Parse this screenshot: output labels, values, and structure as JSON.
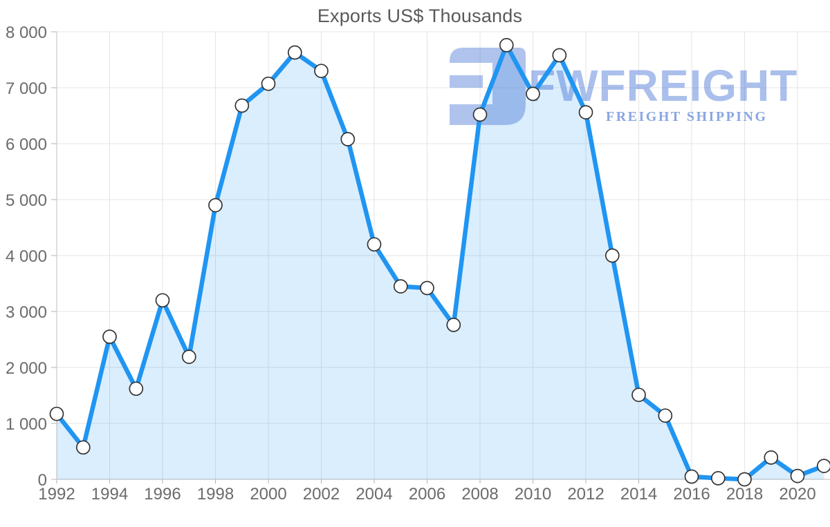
{
  "chart_data": {
    "type": "area",
    "title": "Exports US$ Thousands",
    "xlabel": "",
    "ylabel": "",
    "x": [
      1992,
      1993,
      1994,
      1995,
      1996,
      1997,
      1998,
      1999,
      2000,
      2001,
      2002,
      2003,
      2004,
      2005,
      2006,
      2007,
      2008,
      2009,
      2010,
      2011,
      2012,
      2013,
      2014,
      2015,
      2016,
      2017,
      2018,
      2019,
      2020,
      2021
    ],
    "values": [
      1170,
      570,
      2550,
      1620,
      3200,
      2190,
      4900,
      6680,
      7070,
      7630,
      7300,
      6080,
      4200,
      3450,
      3420,
      2760,
      6520,
      7760,
      6890,
      7580,
      6560,
      4000,
      1510,
      1140,
      50,
      20,
      0,
      390,
      60,
      240
    ],
    "ylim": [
      0,
      8000
    ],
    "ytick_step": 1000,
    "ytick_labels": [
      "0",
      "1 000",
      "2 000",
      "3 000",
      "4 000",
      "5 000",
      "6 000",
      "7 000",
      "8 000"
    ],
    "xtick_years": [
      1992,
      1994,
      1996,
      1998,
      2000,
      2002,
      2004,
      2006,
      2008,
      2010,
      2012,
      2014,
      2016,
      2018,
      2020
    ],
    "grid": true,
    "legend": "none",
    "line_color": "#2095f2",
    "fill_color": "rgba(33,150,243,0.16)",
    "marker_fill": "#ffffff",
    "marker_stroke": "#333333",
    "grid_color": "#e4e4e4",
    "axis_color": "#c8c8c8",
    "tick_color": "#b0b0b0",
    "label_color": "#6b6b6b",
    "title_color": "#58595b"
  },
  "watermark": {
    "brand": "FWFREIGHT",
    "tagline": "FREIGHT SHIPPING",
    "logo_color": "#4d79d8"
  }
}
